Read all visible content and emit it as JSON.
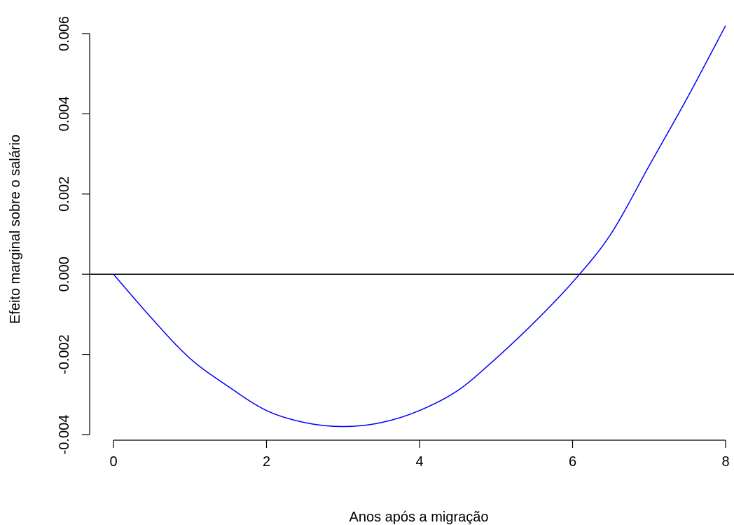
{
  "chart_data": {
    "type": "line",
    "title": "",
    "xlabel": "Anos após a migração",
    "ylabel": "Efeito marginal sobre o salário",
    "xlim": [
      0,
      8
    ],
    "ylim": [
      -0.004,
      0.006
    ],
    "xticks": [
      0,
      2,
      4,
      6,
      8
    ],
    "xtick_labels": [
      "0",
      "2",
      "4",
      "6",
      "8"
    ],
    "yticks": [
      -0.004,
      -0.002,
      0.0,
      0.002,
      0.004,
      0.006
    ],
    "ytick_labels": [
      "-0.004",
      "-0.002",
      "0.000",
      "0.002",
      "0.004",
      "0.006"
    ],
    "grid": false,
    "legend": "none",
    "reference_lines": [
      {
        "orientation": "horizontal",
        "y": 0.0,
        "color": "#000000"
      }
    ],
    "series": [
      {
        "color": "#0000ff",
        "x": [
          0,
          0.5,
          1,
          1.5,
          2,
          2.5,
          3,
          3.5,
          4,
          4.5,
          5,
          5.5,
          6,
          6.5,
          7,
          7.5,
          8
        ],
        "y": [
          0.0,
          -0.0011,
          -0.0021,
          -0.0028,
          -0.0034,
          -0.0037,
          -0.0038,
          -0.0037,
          -0.0034,
          -0.0029,
          -0.0021,
          -0.0012,
          -0.0002,
          0.001,
          0.0027,
          0.0044,
          0.0062
        ]
      }
    ]
  }
}
